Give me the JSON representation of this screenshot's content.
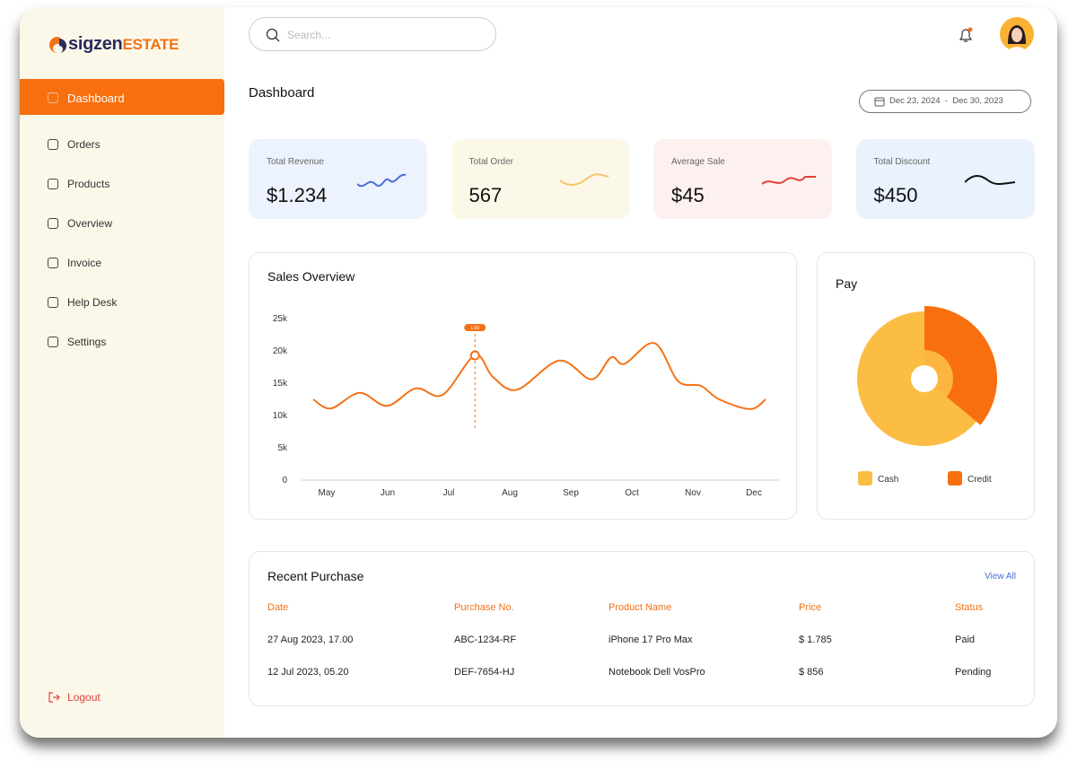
{
  "brand": {
    "name": "sigzen",
    "suffix": "ESTATE"
  },
  "nav": {
    "items": [
      "Dashboard",
      "Orders",
      "Products",
      "Overview",
      "Invoice",
      "Help Desk",
      "Settings"
    ],
    "logout": "Logout"
  },
  "search": {
    "placeholder": "Search..."
  },
  "page_title": "Dashboard",
  "date_range": {
    "start": "Dec 23, 2024",
    "separator": "-",
    "end": "Dec 30, 2023"
  },
  "stats": [
    {
      "label": "Total Revenue",
      "value": "$1.234"
    },
    {
      "label": "Total Order",
      "value": "567"
    },
    {
      "label": "Average Sale",
      "value": "$45"
    },
    {
      "label": "Total Discount",
      "value": "$450"
    }
  ],
  "chart_data": [
    {
      "type": "line",
      "title": "Sales Overview",
      "x": [
        4.78,
        5.07,
        5.54,
        5.99,
        6.46,
        6.9,
        7.43,
        7.72,
        8.12,
        8.81,
        9.34,
        9.66,
        9.88,
        10.37,
        10.76,
        11.13,
        11.43,
        11.94,
        12.19
      ],
      "series": [
        {
          "color": "#f47216",
          "values": [
            12500,
            11100,
            13500,
            11500,
            14200,
            13200,
            19300,
            16000,
            14000,
            18500,
            15600,
            19000,
            18000,
            21200,
            15300,
            14600,
            12500,
            11000,
            12500
          ]
        }
      ],
      "xlim": [
        4.78,
        12.19
      ],
      "xticks": [
        {
          "value": 5,
          "label": "May"
        },
        {
          "value": 6,
          "label": "Jun"
        },
        {
          "value": 7,
          "label": "Jul"
        },
        {
          "value": 8,
          "label": "Aug"
        },
        {
          "value": 9,
          "label": "Sep"
        },
        {
          "value": 10,
          "label": "Oct"
        },
        {
          "value": 11,
          "label": "Nov"
        },
        {
          "value": 12,
          "label": "Dec"
        }
      ],
      "ylim": [
        0,
        25000
      ],
      "yticks": [
        0,
        {
          "value": 5000,
          "label": "5k"
        },
        {
          "value": 10000,
          "label": "10k"
        },
        {
          "value": 15000,
          "label": "15k"
        },
        {
          "value": 20000,
          "label": "20k"
        },
        {
          "value": 25000,
          "label": "25k"
        }
      ],
      "grid": false,
      "annotation": "1.00"
    },
    {
      "type": "pie",
      "title": "Pay",
      "categories": [
        "Cash",
        "Credit"
      ],
      "values": [
        64,
        36
      ],
      "colors": [
        "#fcbd45",
        "#f86f0f"
      ]
    }
  ],
  "purchases": {
    "title": "Recent Purchase",
    "link": "View All",
    "columns": [
      "Date",
      "Purchase No.",
      "Product Name",
      "Price",
      "Status"
    ],
    "rows": [
      [
        "27 Aug 2023, 17.00",
        "ABC-1234-RF",
        "iPhone 17 Pro Max",
        "$ 1.785",
        "Paid"
      ],
      [
        "12 Jul 2023, 05.20",
        "DEF-7654-HJ",
        "Notebook Dell VosPro",
        "$ 856",
        "Pending"
      ]
    ]
  }
}
